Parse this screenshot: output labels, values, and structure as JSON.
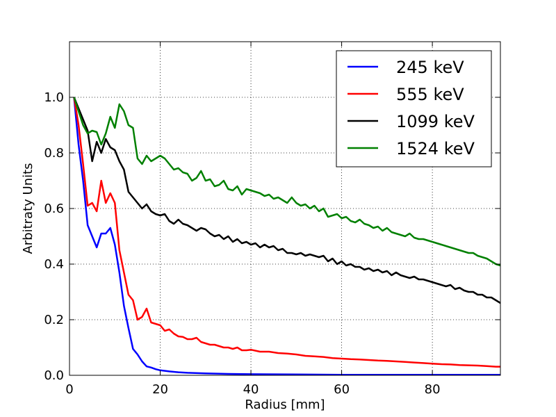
{
  "chart_data": {
    "type": "line",
    "title": "",
    "xlabel": "Radius [mm]",
    "ylabel": "Arbitraty Units",
    "xlim": [
      0,
      95
    ],
    "ylim": [
      0,
      1.2
    ],
    "grid": true,
    "legend_position": "top-right",
    "x_ticks": [
      {
        "value": 0,
        "label": "0"
      },
      {
        "value": 20,
        "label": "20"
      },
      {
        "value": 40,
        "label": "40"
      },
      {
        "value": 60,
        "label": "60"
      },
      {
        "value": 80,
        "label": "80"
      }
    ],
    "y_ticks": [
      {
        "value": 0.0,
        "label": "0.0"
      },
      {
        "value": 0.2,
        "label": "0.2"
      },
      {
        "value": 0.4,
        "label": "0.4"
      },
      {
        "value": 0.6,
        "label": "0.6"
      },
      {
        "value": 0.8,
        "label": "0.8"
      },
      {
        "value": 1.0,
        "label": "1.0"
      }
    ],
    "series": [
      {
        "name": "245 keV",
        "color": "#0000ff",
        "points": [
          [
            1,
            1.0
          ],
          [
            2,
            0.83
          ],
          [
            3,
            0.7
          ],
          [
            4,
            0.54
          ],
          [
            5,
            0.5
          ],
          [
            6,
            0.46
          ],
          [
            7,
            0.51
          ],
          [
            8,
            0.51
          ],
          [
            9,
            0.53
          ],
          [
            10,
            0.47
          ],
          [
            11,
            0.37
          ],
          [
            12,
            0.25
          ],
          [
            13,
            0.17
          ],
          [
            14,
            0.095
          ],
          [
            15,
            0.075
          ],
          [
            16,
            0.05
          ],
          [
            17,
            0.032
          ],
          [
            18,
            0.028
          ],
          [
            19,
            0.022
          ],
          [
            20,
            0.018
          ],
          [
            22,
            0.014
          ],
          [
            24,
            0.011
          ],
          [
            26,
            0.009
          ],
          [
            30,
            0.007
          ],
          [
            35,
            0.005
          ],
          [
            40,
            0.004
          ],
          [
            50,
            0.003
          ],
          [
            60,
            0.002
          ],
          [
            70,
            0.002
          ],
          [
            80,
            0.002
          ],
          [
            95,
            0.002
          ]
        ]
      },
      {
        "name": "555 keV",
        "color": "#ff0000",
        "points": [
          [
            1,
            1.0
          ],
          [
            2,
            0.9
          ],
          [
            3,
            0.76
          ],
          [
            4,
            0.61
          ],
          [
            5,
            0.62
          ],
          [
            6,
            0.59
          ],
          [
            7,
            0.7
          ],
          [
            8,
            0.62
          ],
          [
            9,
            0.655
          ],
          [
            10,
            0.62
          ],
          [
            11,
            0.45
          ],
          [
            12,
            0.37
          ],
          [
            13,
            0.29
          ],
          [
            14,
            0.27
          ],
          [
            15,
            0.2
          ],
          [
            16,
            0.21
          ],
          [
            17,
            0.24
          ],
          [
            18,
            0.19
          ],
          [
            19,
            0.185
          ],
          [
            20,
            0.18
          ],
          [
            21,
            0.16
          ],
          [
            22,
            0.165
          ],
          [
            23,
            0.15
          ],
          [
            24,
            0.14
          ],
          [
            25,
            0.138
          ],
          [
            26,
            0.13
          ],
          [
            27,
            0.13
          ],
          [
            28,
            0.135
          ],
          [
            29,
            0.12
          ],
          [
            30,
            0.115
          ],
          [
            31,
            0.11
          ],
          [
            32,
            0.11
          ],
          [
            33,
            0.105
          ],
          [
            34,
            0.1
          ],
          [
            35,
            0.1
          ],
          [
            36,
            0.095
          ],
          [
            37,
            0.1
          ],
          [
            38,
            0.09
          ],
          [
            39,
            0.09
          ],
          [
            40,
            0.092
          ],
          [
            42,
            0.085
          ],
          [
            44,
            0.085
          ],
          [
            46,
            0.08
          ],
          [
            48,
            0.078
          ],
          [
            50,
            0.075
          ],
          [
            52,
            0.07
          ],
          [
            54,
            0.068
          ],
          [
            56,
            0.066
          ],
          [
            58,
            0.062
          ],
          [
            60,
            0.06
          ],
          [
            62,
            0.058
          ],
          [
            64,
            0.057
          ],
          [
            66,
            0.055
          ],
          [
            68,
            0.053
          ],
          [
            70,
            0.052
          ],
          [
            72,
            0.05
          ],
          [
            74,
            0.048
          ],
          [
            76,
            0.046
          ],
          [
            78,
            0.044
          ],
          [
            80,
            0.042
          ],
          [
            82,
            0.04
          ],
          [
            84,
            0.039
          ],
          [
            86,
            0.037
          ],
          [
            88,
            0.036
          ],
          [
            90,
            0.035
          ],
          [
            92,
            0.033
          ],
          [
            94,
            0.031
          ],
          [
            95,
            0.031
          ]
        ]
      },
      {
        "name": "1099 keV",
        "color": "#000000",
        "points": [
          [
            1,
            1.0
          ],
          [
            2,
            0.96
          ],
          [
            3,
            0.92
          ],
          [
            4,
            0.88
          ],
          [
            5,
            0.77
          ],
          [
            6,
            0.84
          ],
          [
            7,
            0.8
          ],
          [
            8,
            0.85
          ],
          [
            9,
            0.82
          ],
          [
            10,
            0.81
          ],
          [
            11,
            0.77
          ],
          [
            12,
            0.74
          ],
          [
            13,
            0.66
          ],
          [
            14,
            0.64
          ],
          [
            15,
            0.62
          ],
          [
            16,
            0.6
          ],
          [
            17,
            0.615
          ],
          [
            18,
            0.59
          ],
          [
            19,
            0.58
          ],
          [
            20,
            0.575
          ],
          [
            21,
            0.58
          ],
          [
            22,
            0.555
          ],
          [
            23,
            0.545
          ],
          [
            24,
            0.56
          ],
          [
            25,
            0.545
          ],
          [
            26,
            0.54
          ],
          [
            27,
            0.53
          ],
          [
            28,
            0.52
          ],
          [
            29,
            0.53
          ],
          [
            30,
            0.525
          ],
          [
            31,
            0.51
          ],
          [
            32,
            0.5
          ],
          [
            33,
            0.505
          ],
          [
            34,
            0.49
          ],
          [
            35,
            0.5
          ],
          [
            36,
            0.48
          ],
          [
            37,
            0.49
          ],
          [
            38,
            0.475
          ],
          [
            39,
            0.48
          ],
          [
            40,
            0.47
          ],
          [
            41,
            0.475
          ],
          [
            42,
            0.46
          ],
          [
            43,
            0.47
          ],
          [
            44,
            0.46
          ],
          [
            45,
            0.465
          ],
          [
            46,
            0.45
          ],
          [
            47,
            0.455
          ],
          [
            48,
            0.44
          ],
          [
            49,
            0.44
          ],
          [
            50,
            0.435
          ],
          [
            51,
            0.44
          ],
          [
            52,
            0.43
          ],
          [
            53,
            0.435
          ],
          [
            54,
            0.43
          ],
          [
            55,
            0.425
          ],
          [
            56,
            0.43
          ],
          [
            57,
            0.41
          ],
          [
            58,
            0.42
          ],
          [
            59,
            0.4
          ],
          [
            60,
            0.41
          ],
          [
            61,
            0.395
          ],
          [
            62,
            0.4
          ],
          [
            63,
            0.39
          ],
          [
            64,
            0.39
          ],
          [
            65,
            0.38
          ],
          [
            66,
            0.385
          ],
          [
            67,
            0.375
          ],
          [
            68,
            0.38
          ],
          [
            69,
            0.37
          ],
          [
            70,
            0.375
          ],
          [
            71,
            0.36
          ],
          [
            72,
            0.37
          ],
          [
            73,
            0.36
          ],
          [
            74,
            0.355
          ],
          [
            75,
            0.35
          ],
          [
            76,
            0.355
          ],
          [
            77,
            0.345
          ],
          [
            78,
            0.345
          ],
          [
            79,
            0.34
          ],
          [
            80,
            0.335
          ],
          [
            81,
            0.33
          ],
          [
            82,
            0.325
          ],
          [
            83,
            0.32
          ],
          [
            84,
            0.325
          ],
          [
            85,
            0.31
          ],
          [
            86,
            0.315
          ],
          [
            87,
            0.305
          ],
          [
            88,
            0.3
          ],
          [
            89,
            0.3
          ],
          [
            90,
            0.29
          ],
          [
            91,
            0.29
          ],
          [
            92,
            0.28
          ],
          [
            93,
            0.28
          ],
          [
            94,
            0.27
          ],
          [
            95,
            0.26
          ]
        ]
      },
      {
        "name": "1524 keV",
        "color": "#008000",
        "points": [
          [
            1,
            1.0
          ],
          [
            2,
            0.95
          ],
          [
            3,
            0.9
          ],
          [
            4,
            0.87
          ],
          [
            5,
            0.88
          ],
          [
            6,
            0.875
          ],
          [
            7,
            0.83
          ],
          [
            8,
            0.87
          ],
          [
            9,
            0.93
          ],
          [
            10,
            0.89
          ],
          [
            11,
            0.975
          ],
          [
            12,
            0.95
          ],
          [
            13,
            0.9
          ],
          [
            14,
            0.89
          ],
          [
            15,
            0.78
          ],
          [
            16,
            0.76
          ],
          [
            17,
            0.79
          ],
          [
            18,
            0.77
          ],
          [
            19,
            0.78
          ],
          [
            20,
            0.79
          ],
          [
            21,
            0.78
          ],
          [
            22,
            0.76
          ],
          [
            23,
            0.74
          ],
          [
            24,
            0.745
          ],
          [
            25,
            0.73
          ],
          [
            26,
            0.725
          ],
          [
            27,
            0.7
          ],
          [
            28,
            0.71
          ],
          [
            29,
            0.735
          ],
          [
            30,
            0.7
          ],
          [
            31,
            0.705
          ],
          [
            32,
            0.68
          ],
          [
            33,
            0.685
          ],
          [
            34,
            0.7
          ],
          [
            35,
            0.67
          ],
          [
            36,
            0.665
          ],
          [
            37,
            0.68
          ],
          [
            38,
            0.65
          ],
          [
            39,
            0.67
          ],
          [
            40,
            0.665
          ],
          [
            41,
            0.66
          ],
          [
            42,
            0.655
          ],
          [
            43,
            0.645
          ],
          [
            44,
            0.65
          ],
          [
            45,
            0.635
          ],
          [
            46,
            0.64
          ],
          [
            47,
            0.63
          ],
          [
            48,
            0.62
          ],
          [
            49,
            0.64
          ],
          [
            50,
            0.62
          ],
          [
            51,
            0.61
          ],
          [
            52,
            0.615
          ],
          [
            53,
            0.6
          ],
          [
            54,
            0.61
          ],
          [
            55,
            0.59
          ],
          [
            56,
            0.6
          ],
          [
            57,
            0.57
          ],
          [
            58,
            0.575
          ],
          [
            59,
            0.58
          ],
          [
            60,
            0.565
          ],
          [
            61,
            0.57
          ],
          [
            62,
            0.555
          ],
          [
            63,
            0.55
          ],
          [
            64,
            0.56
          ],
          [
            65,
            0.545
          ],
          [
            66,
            0.54
          ],
          [
            67,
            0.53
          ],
          [
            68,
            0.535
          ],
          [
            69,
            0.52
          ],
          [
            70,
            0.53
          ],
          [
            71,
            0.515
          ],
          [
            72,
            0.51
          ],
          [
            73,
            0.505
          ],
          [
            74,
            0.5
          ],
          [
            75,
            0.51
          ],
          [
            76,
            0.495
          ],
          [
            77,
            0.49
          ],
          [
            78,
            0.49
          ],
          [
            79,
            0.485
          ],
          [
            80,
            0.48
          ],
          [
            81,
            0.475
          ],
          [
            82,
            0.47
          ],
          [
            83,
            0.465
          ],
          [
            84,
            0.46
          ],
          [
            85,
            0.455
          ],
          [
            86,
            0.45
          ],
          [
            87,
            0.445
          ],
          [
            88,
            0.44
          ],
          [
            89,
            0.44
          ],
          [
            90,
            0.43
          ],
          [
            91,
            0.425
          ],
          [
            92,
            0.42
          ],
          [
            93,
            0.41
          ],
          [
            94,
            0.4
          ],
          [
            95,
            0.395
          ]
        ]
      }
    ]
  }
}
